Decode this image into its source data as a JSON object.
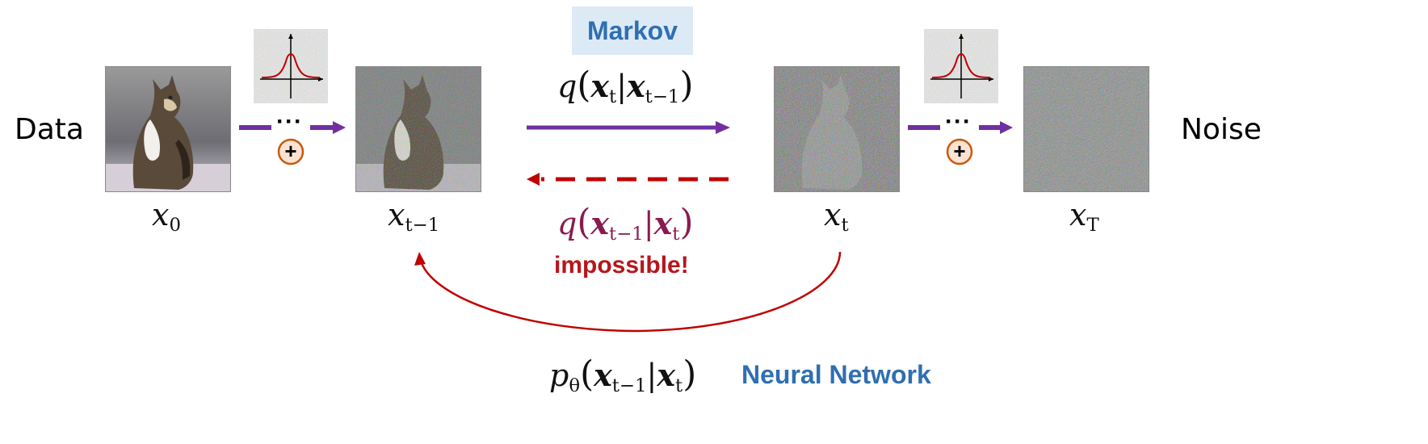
{
  "labels": {
    "data": "Data",
    "noise": "Noise",
    "markov": "Markov",
    "impossible": "impossible!",
    "neural_network": "Neural Network"
  },
  "images": [
    {
      "name": "x0-image",
      "content": "clean photo of a tabby cat sitting",
      "noise_level": 0
    },
    {
      "name": "xt-minus-1-image",
      "content": "cat photo with light noise",
      "noise_level": 0.35
    },
    {
      "name": "xt-image",
      "content": "cat silhouette in heavy noise",
      "noise_level": 0.8
    },
    {
      "name": "xT-image",
      "content": "pure gaussian noise",
      "noise_level": 1
    }
  ],
  "variables": {
    "x0": {
      "base": "x",
      "sub": "0"
    },
    "xt_minus_1": {
      "base": "x",
      "sub": "t−1"
    },
    "xt": {
      "base": "x",
      "sub": "t"
    },
    "xT": {
      "base": "x",
      "sub": "T"
    }
  },
  "forward_transition": {
    "func": "q",
    "target": "x",
    "target_sub": "t",
    "cond": "x",
    "cond_sub": "t−1"
  },
  "reverse_true": {
    "func": "q",
    "target": "x",
    "target_sub": "t−1",
    "cond": "x",
    "cond_sub": "t"
  },
  "reverse_model": {
    "func": "p",
    "func_sub": "θ",
    "target": "x",
    "target_sub": "t−1",
    "cond": "x",
    "cond_sub": "t"
  },
  "step_symbols": {
    "ellipsis": "···",
    "plus": "+"
  },
  "colors": {
    "forward_arrow": "#7030a0",
    "reverse_dashed": "#c00000",
    "curve": "#c00000",
    "markov_bg": "#dceaf6",
    "blue_text": "#2f6fb1",
    "impossible_text": "#b5161c",
    "maroon_math": "#8a1a4e",
    "plus_fill": "#fbe3d3",
    "plus_stroke": "#c55a11"
  }
}
